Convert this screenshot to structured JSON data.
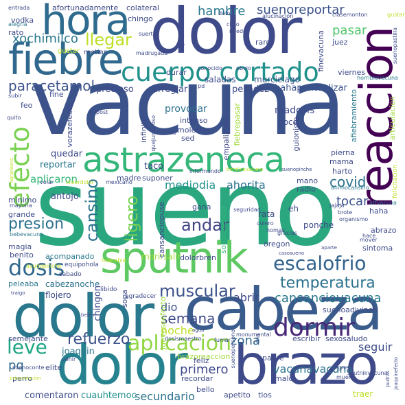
{
  "words": [
    {
      "id": "sueno",
      "text": "sueno",
      "color": "#2aa77f"
    },
    {
      "id": "vacuna",
      "text": "vacuna",
      "color": "#3b528b"
    },
    {
      "id": "dolor",
      "text": "dolor",
      "color": "#3e4a89"
    },
    {
      "id": "cabeza",
      "text": "cabeza",
      "color": "#3a5c8c"
    },
    {
      "id": "brazo",
      "text": "brazo",
      "color": "#26828e"
    },
    {
      "id": "dolor2",
      "text": "dolor",
      "color": "#2a788e"
    },
    {
      "id": "dolor3",
      "text": "dolor",
      "color": "#3e4a89"
    },
    {
      "id": "fiebre",
      "text": "fiebre",
      "color": "#31688e"
    },
    {
      "id": "hora",
      "text": "hora",
      "color": "#2e6b8e"
    },
    {
      "id": "sputnik",
      "text": "sputnik",
      "color": "#5ec962"
    },
    {
      "id": "astrazeneca",
      "text": "astrazeneca",
      "color": "#35b779"
    },
    {
      "id": "reaccion",
      "text": "reaccion",
      "color": "#440154"
    },
    {
      "id": "cuerpo_cortado",
      "text": "cuerpo cortado",
      "color": "#21918c"
    },
    {
      "id": "escalofrio",
      "text": "escalofrio",
      "color": "#33638d"
    },
    {
      "id": "dormir",
      "text": "dormir",
      "color": "#482878"
    },
    {
      "id": "aplicacion",
      "text": "aplicacion",
      "color": "#90d743"
    },
    {
      "id": "temperatura",
      "text": "temperatura",
      "color": "#2c728e"
    },
    {
      "id": "dosis",
      "text": "dosis",
      "color": "#31688e"
    },
    {
      "id": "muscular",
      "text": "muscular",
      "color": "#3b528b"
    },
    {
      "id": "efecto",
      "text": "efecto",
      "color": "#7ad151"
    },
    {
      "id": "cansino",
      "text": "cansino",
      "color": "#2c728e"
    },
    {
      "id": "leve",
      "text": "leve",
      "color": "#21a685"
    },
    {
      "id": "llegar",
      "text": "llegar",
      "color": "#bddf26"
    },
    {
      "id": "paracetamol",
      "text": "paracetamol",
      "color": "#3b528b"
    },
    {
      "id": "xochimilco",
      "text": "xochimilco",
      "color": "#2a788e"
    },
    {
      "id": "andar",
      "text": "andar",
      "color": "#414487"
    },
    {
      "id": "ligero",
      "text": "ligero",
      "color": "#7ad151"
    },
    {
      "id": "refuerzo",
      "text": "refuerzo",
      "color": "#3b528b"
    },
    {
      "id": "presion",
      "text": "presion",
      "color": "#2c728e"
    },
    {
      "id": "suenoreportar",
      "text": "suenoreportar",
      "color": "#3b528b"
    },
    {
      "id": "hambre",
      "text": "hambre",
      "color": "#2a788e"
    },
    {
      "id": "pasar",
      "text": "pasar",
      "color": "#52c569"
    },
    {
      "id": "semana",
      "text": "semana",
      "color": "#3e4a89"
    },
    {
      "id": "mediodia",
      "text": "mediodia",
      "color": "#21918c"
    },
    {
      "id": "ahorita",
      "text": "ahorita",
      "color": "#2c728e"
    },
    {
      "id": "covid",
      "text": "covid",
      "color": "#2c728e"
    },
    {
      "id": "tocar",
      "text": "tocar",
      "color": "#3b528b"
    },
    {
      "id": "cansanciovacuna",
      "text": "cansanciovacuna",
      "color": "#2a788e"
    },
    {
      "id": "abrir",
      "text": "abrir",
      "color": "#3e4a89"
    },
    {
      "id": "seguir",
      "text": "seguir",
      "color": "#3e4a89"
    },
    {
      "id": "zona",
      "text": "zona",
      "color": "#31688e"
    },
    {
      "id": "vacunavacuna",
      "text": "vacunavacuna",
      "color": "#2c728e"
    },
    {
      "id": "secundario",
      "text": "secundario",
      "color": "#2c728e"
    },
    {
      "id": "primero",
      "text": "primero",
      "color": "#3e4a89"
    },
    {
      "id": "pq",
      "text": "pq",
      "color": "#31688e"
    },
    {
      "id": "joaquin",
      "text": "joaquin",
      "color": "#2a788e"
    },
    {
      "id": "comentaron",
      "text": "comentaron",
      "color": "#3e4a89"
    },
    {
      "id": "cuauhtemoc",
      "text": "cuauhtemoc",
      "color": "#21918c"
    },
    {
      "id": "noche",
      "text": "noche",
      "color": "#bddf26"
    },
    {
      "id": "dio",
      "text": "dio",
      "color": "#3b528b"
    },
    {
      "id": "aplicaron",
      "text": "aplicaron",
      "color": "#35b779"
    },
    {
      "id": "reportar",
      "text": "reportar",
      "color": "#2a788e"
    },
    {
      "id": "quedar",
      "text": "quedar",
      "color": "#3e4a89"
    },
    {
      "id": "antojo",
      "text": "antojo",
      "color": "#3e4a89"
    },
    {
      "id": "taco",
      "text": "taco",
      "color": "#3e4a89"
    },
    {
      "id": "provocar",
      "text": "provocar",
      "color": "#2c728e"
    },
    {
      "id": "precioso",
      "text": "precioso",
      "color": "#3e4a89"
    },
    {
      "id": "arreglar",
      "text": "arreglar",
      "color": "#3e4a89"
    },
    {
      "id": "pesadez",
      "text": "pesadez",
      "color": "#3e4a89"
    },
    {
      "id": "hahapuntualizar",
      "text": "hahapuntualizar",
      "color": "#3b528b"
    },
    {
      "id": "saladas",
      "text": "saladas",
      "color": "#3e4a89"
    },
    {
      "id": "murcielago",
      "text": "murcielago",
      "color": "#3b528b"
    },
    {
      "id": "madosis",
      "text": "madosis",
      "color": "#3e4a89"
    },
    {
      "id": "doce",
      "text": "doce",
      "color": "#3e4a89"
    },
    {
      "id": "afortunadamente",
      "text": "afortunadamente",
      "color": "#3e4a89"
    },
    {
      "id": "colateral",
      "text": "colateral",
      "color": "#3e4a89"
    },
    {
      "id": "chingo",
      "text": "chingo",
      "color": "#3e4a89"
    },
    {
      "id": "vodka",
      "text": "vodka",
      "color": "#3e4a89"
    },
    {
      "id": "rato",
      "text": "rato",
      "color": "#3e4a89"
    },
    {
      "id": "minimo",
      "text": "minimo",
      "color": "#3e4a89"
    },
    {
      "id": "grande",
      "text": "grande",
      "color": "#3e4a89"
    },
    {
      "id": "magia",
      "text": "magia",
      "color": "#3e4a89"
    },
    {
      "id": "benito",
      "text": "benito",
      "color": "#3e4a89"
    },
    {
      "id": "acompanado",
      "text": "acompanado",
      "color": "#2a788e"
    },
    {
      "id": "peleaba",
      "text": "peleaba",
      "color": "#2a788e"
    },
    {
      "id": "cabezanoche",
      "text": "cabezanoche",
      "color": "#2c728e"
    },
    {
      "id": "flojero",
      "text": "flojero",
      "color": "#3e4a89"
    },
    {
      "id": "chingon",
      "text": "chingon",
      "color": "#3e4a89"
    },
    {
      "id": "semejante",
      "text": "semejante",
      "color": "#3e4a89"
    },
    {
      "id": "perro",
      "text": "perro",
      "color": "#3e4a89"
    },
    {
      "id": "elite",
      "text": "elite",
      "color": "#3e4a89"
    },
    {
      "id": "sopa",
      "text": "sopa",
      "color": "#3e4a89"
    },
    {
      "id": "mama",
      "text": "mama",
      "color": "#3e4a89"
    },
    {
      "id": "pierna",
      "text": "pierna",
      "color": "#3e4a89"
    },
    {
      "id": "harto",
      "text": "harto",
      "color": "#3e4a89"
    },
    {
      "id": "mano",
      "text": "mano",
      "color": "#3e4a89"
    },
    {
      "id": "radio",
      "text": "radio",
      "color": "#3e4a89"
    },
    {
      "id": "rata",
      "text": "rata",
      "color": "#3e4a89"
    },
    {
      "id": "gana",
      "text": "gana",
      "color": "#3e4a89"
    },
    {
      "id": "haha",
      "text": "haha",
      "color": "#3e4a89"
    },
    {
      "id": "abrazo",
      "text": "abrazo",
      "color": "#3e4a89"
    },
    {
      "id": "ponche",
      "text": "ponche",
      "color": "#3e4a89"
    },
    {
      "id": "sintoma",
      "text": "sintoma",
      "color": "#3e4a89"
    },
    {
      "id": "oregon",
      "text": "oregon",
      "color": "#3e4a89"
    },
    {
      "id": "eh",
      "text": "eh",
      "color": "#3e4a89"
    },
    {
      "id": "suponer",
      "text": "suponer",
      "color": "#3e4a89"
    },
    {
      "id": "madre",
      "text": "madre",
      "color": "#3e4a89"
    },
    {
      "id": "morirsalir",
      "text": "morirsalir",
      "color": "#a0da39"
    },
    {
      "id": "dolorbren",
      "text": "dolorbren",
      "color": "#3e4a89"
    },
    {
      "id": "recordar",
      "text": "recordar",
      "color": "#3e4a89"
    },
    {
      "id": "bello",
      "text": "bello",
      "color": "#3e4a89"
    },
    {
      "id": "apetito",
      "text": "apetito",
      "color": "#3e4a89"
    },
    {
      "id": "tios",
      "text": "tios",
      "color": "#3e4a89"
    },
    {
      "id": "malo",
      "text": "malo",
      "color": "#3e4a89"
    },
    {
      "id": "traer",
      "text": "traer",
      "color": "#bddf26"
    },
    {
      "id": "escribir",
      "text": "escribir",
      "color": "#3e4a89"
    },
    {
      "id": "sexosaludo",
      "text": "sexosaludo",
      "color": "#3e4a89"
    },
    {
      "id": "brazoreaccion",
      "text": "brazoreaccion",
      "color": "#a0da39"
    },
    {
      "id": "feliz",
      "text": "feliz",
      "color": "#3e4a89"
    },
    {
      "id": "padre",
      "text": "padre",
      "color": "#3e4a89"
    },
    {
      "id": "suenoadivinen",
      "text": "suenoadivinen",
      "color": "#3e4a89"
    },
    {
      "id": "durar",
      "text": "durar",
      "color": "#3e4a89"
    },
    {
      "id": "molestia",
      "text": "molestia",
      "color": "#3e4a89"
    },
    {
      "id": "intenso",
      "text": "intenso",
      "color": "#3e4a89"
    },
    {
      "id": "sed",
      "text": "sed",
      "color": "#3e4a89"
    },
    {
      "id": "feo",
      "text": "feo",
      "color": "#3e4a89"
    },
    {
      "id": "fine",
      "text": "fine",
      "color": "#3e4a89"
    },
    {
      "id": "raro",
      "text": "raro",
      "color": "#3e4a89"
    },
    {
      "id": "viernes",
      "text": "viernes",
      "color": "#3e4a89"
    },
    {
      "id": "juez",
      "text": "juez",
      "color": "#3e4a89"
    },
    {
      "id": "finevacuna",
      "text": "finevacuna",
      "color": "#3e4a89"
    },
    {
      "id": "afiebramiento",
      "text": "afiebramiento",
      "color": "#2a788e"
    },
    {
      "id": "articulacion",
      "text": "articulacion",
      "color": "#a0da39"
    },
    {
      "id": "fiebrepasar",
      "text": "fiebrepasar",
      "color": "#a0da39"
    },
    {
      "id": "empalizado",
      "text": "empalizado",
      "color": "#3e4a89"
    },
    {
      "id": "guionista",
      "text": "guionista",
      "color": "#3e4a89"
    },
    {
      "id": "vorazefecto",
      "text": "vorazefecto",
      "color": "#3e4a89"
    },
    {
      "id": "infinito",
      "text": "infinito",
      "color": "#3e4a89"
    },
    {
      "id": "cansanciopuse",
      "text": "cansanciopuse",
      "color": "#3e4a89"
    },
    {
      "id": "somnolencia",
      "text": "somnolencia",
      "color": "#35b779"
    },
    {
      "id": "jueveseefecto",
      "text": "jueveseefecto",
      "color": "#a0da39"
    },
    {
      "id": "gustar",
      "text": "gustar",
      "color": "#bddf26"
    },
    {
      "id": "metian",
      "text": "metian",
      "color": "#3e4a89"
    },
    {
      "id": "informando",
      "text": "informando",
      "color": "#3e4a89"
    },
    {
      "id": "conocido",
      "text": "conocido",
      "color": "#3e4a89"
    },
    {
      "id": "madrugada",
      "text": "madrugada",
      "color": "#3e4a89"
    },
    {
      "id": "suerte",
      "text": "suerte",
      "color": "#3e4a89"
    },
    {
      "id": "alucinacion",
      "text": "alucinacion",
      "color": "#3e4a89"
    },
    {
      "id": "cielo",
      "text": "cielo",
      "color": "#3e4a89"
    },
    {
      "id": "miedo",
      "text": "miedo",
      "color": "#3e4a89"
    },
    {
      "id": "clasemonton",
      "text": "clasemonton",
      "color": "#3e4a89"
    },
    {
      "id": "gustar2",
      "text": "gustar",
      "color": "#bddf26"
    },
    {
      "id": "seguridad",
      "text": "seguridad",
      "color": "#3e4a89"
    },
    {
      "id": "culero",
      "text": "culero",
      "color": "#3e4a89"
    },
    {
      "id": "nomas",
      "text": "nomas",
      "color": "#3e4a89"
    },
    {
      "id": "gracias",
      "text": "gracias",
      "color": "#3e4a89"
    },
    {
      "id": "jajaja",
      "text": "jajaja",
      "color": "#3e4a89"
    },
    {
      "id": "brote",
      "text": "brote",
      "color": "#3e4a89"
    },
    {
      "id": "organismo",
      "text": "organismo",
      "color": "#3e4a89"
    },
    {
      "id": "hace",
      "text": "hace",
      "color": "#3e4a89"
    },
    {
      "id": "mover",
      "text": "mover",
      "color": "#3e4a89"
    },
    {
      "id": "atfvacuna",
      "text": "atfvacuna",
      "color": "#2a788e"
    },
    {
      "id": "animocansino",
      "text": "animocansino",
      "color": "#2a788e"
    },
    {
      "id": "equipohola",
      "text": "equipohola",
      "color": "#3e4a89"
    },
    {
      "id": "ayudapinche",
      "text": "ayudapinche",
      "color": "#bddf26"
    },
    {
      "id": "tolerable",
      "text": "tolerable",
      "color": "#bddf26"
    },
    {
      "id": "libido",
      "text": "libido",
      "color": "#3e4a89"
    },
    {
      "id": "agradecer",
      "text": "agradecer",
      "color": "#3e4a89"
    },
    {
      "id": "sabado",
      "text": "sabado",
      "color": "#3e4a89"
    },
    {
      "id": "monumental",
      "text": "monumental",
      "color": "#3e4a89"
    },
    {
      "id": "dosismaestro",
      "text": "dosismaestro",
      "color": "#3e4a89"
    },
    {
      "id": "fumar",
      "text": "fumar",
      "color": "#3e4a89"
    },
    {
      "id": "regreso",
      "text": "regreso",
      "color": "#3e4a89"
    },
    {
      "id": "muero",
      "text": "muero",
      "color": "#3e4a89"
    },
    {
      "id": "suenoconte",
      "text": "suenoconte",
      "color": "#3e4a89"
    },
    {
      "id": "venir",
      "text": "venir",
      "color": "#3e4a89"
    },
    {
      "id": "sputnikvacuna",
      "text": "sputnikvacuna",
      "color": "#3e4a89"
    },
    {
      "id": "entrada",
      "text": "entrada",
      "color": "#3e4a89"
    },
    {
      "id": "alegria",
      "text": "alegria",
      "color": "#2a788e"
    },
    {
      "id": "mexicano",
      "text": "mexicano",
      "color": "#3e4a89"
    },
    {
      "id": "creerdolor",
      "text": "creerdolor",
      "color": "#bddf26"
    },
    {
      "id": "volar",
      "text": "volar",
      "color": "#3e4a89"
    },
    {
      "id": "mayoria",
      "text": "mayoria",
      "color": "#3e4a89"
    },
    {
      "id": "bebevacuna",
      "text": "bebevacuna",
      "color": "#2a788e"
    },
    {
      "id": "obvio",
      "text": "obvio",
      "color": "#3e4a89"
    },
    {
      "id": "cosa",
      "text": "cosa",
      "color": "#3e4a89"
    },
    {
      "id": "bendicevacuna",
      "text": "bendicevacuna",
      "color": "#bddf26"
    },
    {
      "id": "suenopinche",
      "text": "suenopinche",
      "color": "#3e4a89"
    },
    {
      "id": "post",
      "text": "post",
      "color": "#3e4a89"
    },
    {
      "id": "quejumbroso",
      "text": "quejumbroso",
      "color": "#3e4a89"
    },
    {
      "id": "horriblevacuna",
      "text": "horriblevacuna",
      "color": "#2a788e"
    },
    {
      "id": "suenopastilla",
      "text": "suenopastilla",
      "color": "#3e4a89"
    },
    {
      "id": "felicitacion",
      "text": "felicitacion",
      "color": "#bddf26"
    },
    {
      "id": "suponersentir",
      "text": "suponersentir",
      "color": "#3e4a89"
    },
    {
      "id": "subir",
      "text": "subir",
      "color": "#3e4a89"
    },
    {
      "id": "quito",
      "text": "quito",
      "color": "#3e4a89"
    },
    {
      "id": "pd",
      "text": "pd",
      "color": "#3e4a89"
    },
    {
      "id": "casosueno",
      "text": "casosueno",
      "color": "#3e4a89"
    },
    {
      "id": "aparte",
      "text": "aparte",
      "color": "#3e4a89"
    },
    {
      "id": "suenoversono",
      "text": "suenopersono",
      "color": "#3e4a89"
    },
    {
      "id": "frio",
      "text": "frio",
      "color": "#3e4a89"
    },
    {
      "id": "traigo",
      "text": "traigo",
      "color": "#3e4a89"
    },
    {
      "id": "beber",
      "text": "beber",
      "color": "#3e4a89"
    },
    {
      "id": "agua",
      "text": "agua",
      "color": "#3e4a89"
    },
    {
      "id": "pudras",
      "text": "pudras",
      "color": "#3e4a89"
    },
    {
      "id": "joaquinefecto",
      "text": "joaquinefecto",
      "color": "#3e4a89"
    },
    {
      "id": "prisasolucion",
      "text": "prisasolucion",
      "color": "#bddf26"
    },
    {
      "id": "agradezco",
      "text": "agradezco",
      "color": "#bddf26"
    },
    {
      "id": "dolor4",
      "text": "dolor",
      "color": "#3e4a89"
    }
  ]
}
